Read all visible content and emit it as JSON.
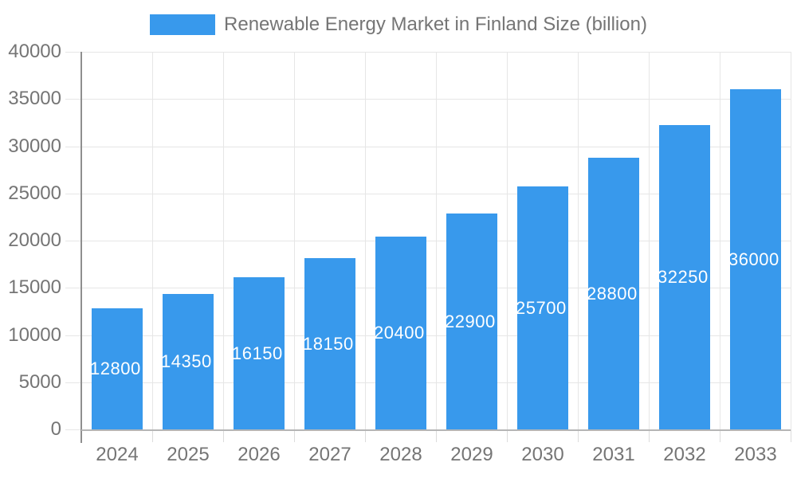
{
  "chart_data": {
    "type": "bar",
    "title": "Renewable Energy Market in Finland Size (billion)",
    "categories": [
      "2024",
      "2025",
      "2026",
      "2027",
      "2028",
      "2029",
      "2030",
      "2031",
      "2032",
      "2033"
    ],
    "values": [
      12800,
      14350,
      16150,
      18150,
      20400,
      22900,
      25700,
      28800,
      32250,
      36000
    ],
    "bar_labels": [
      "12800",
      "14350",
      "16150",
      "18150",
      "20400",
      "22900",
      "25700",
      "28800",
      "32250",
      "36000"
    ],
    "xlabel": "",
    "ylabel": "",
    "ylim": [
      0,
      40000
    ],
    "ytick_labels": [
      "0",
      "5000",
      "10000",
      "15000",
      "20000",
      "25000",
      "30000",
      "35000",
      "40000"
    ],
    "ytick_values": [
      0,
      5000,
      10000,
      15000,
      20000,
      25000,
      30000,
      35000,
      40000
    ],
    "grid": true,
    "legend_position": "top",
    "colors": {
      "bar": "#3899ec",
      "axis_text": "#757575",
      "annotation_text": "#ffffff",
      "gridline": "#e6e6e6",
      "tick": "#dcdcdc",
      "y_axis_line": "#8f8f8f",
      "x_axis_line": "#b5b5b5",
      "background": "#ffffff"
    }
  }
}
